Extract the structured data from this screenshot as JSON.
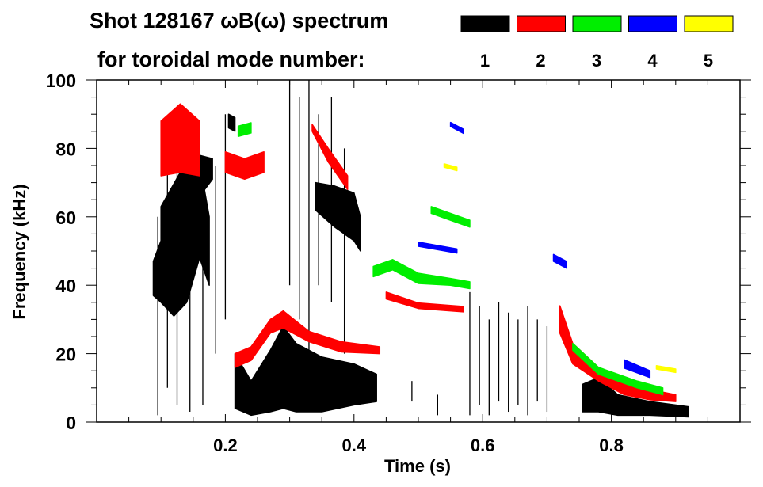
{
  "chart_data": {
    "type": "heatmap",
    "title": "Shot 128167 ωB(ω) spectrum",
    "subtitle": "for toroidal mode number:",
    "xlabel": "Time (s)",
    "ylabel": "Frequency (kHz)",
    "xlim": [
      0,
      1.0
    ],
    "ylim": [
      0,
      100
    ],
    "xticks": [
      0.2,
      0.4,
      0.6,
      0.8
    ],
    "xtick_labels": [
      "0.2",
      "0.4",
      "0.6",
      "0.8"
    ],
    "yticks": [
      0,
      20,
      40,
      60,
      80,
      100
    ],
    "ytick_labels": [
      "0",
      "20",
      "40",
      "60",
      "80",
      "100"
    ],
    "legend": [
      {
        "label": "1",
        "color": "#000000"
      },
      {
        "label": "2",
        "color": "#ff0000"
      },
      {
        "label": "3",
        "color": "#00ee00"
      },
      {
        "label": "4",
        "color": "#0000ff"
      },
      {
        "label": "5",
        "color": "#ffff00"
      }
    ],
    "ridges": [
      {
        "mode": 1,
        "points": [
          [
            0.088,
            42,
            5
          ],
          [
            0.1,
            44,
            9
          ],
          [
            0.12,
            45,
            14
          ],
          [
            0.14,
            55,
            20
          ],
          [
            0.16,
            62,
            14
          ],
          [
            0.175,
            50,
            10
          ]
        ]
      },
      {
        "mode": 1,
        "points": [
          [
            0.1,
            58,
            5
          ],
          [
            0.13,
            65,
            8
          ],
          [
            0.16,
            72,
            6
          ],
          [
            0.18,
            74,
            3
          ]
        ]
      },
      {
        "mode": 1,
        "points": [
          [
            0.205,
            88,
            2
          ],
          [
            0.215,
            87,
            2
          ]
        ]
      },
      {
        "mode": 1,
        "points": [
          [
            0.215,
            12,
            8
          ],
          [
            0.24,
            7,
            5
          ],
          [
            0.27,
            12,
            9
          ],
          [
            0.29,
            16,
            12
          ],
          [
            0.31,
            13,
            10
          ],
          [
            0.35,
            11,
            8
          ],
          [
            0.4,
            11,
            6
          ],
          [
            0.435,
            10,
            4
          ]
        ]
      },
      {
        "mode": 1,
        "points": [
          [
            0.34,
            66,
            4
          ],
          [
            0.37,
            63,
            6
          ],
          [
            0.4,
            60,
            7
          ],
          [
            0.41,
            55,
            5
          ]
        ]
      },
      {
        "mode": 1,
        "points": [
          [
            0.755,
            7,
            4
          ],
          [
            0.78,
            8,
            5
          ],
          [
            0.81,
            5,
            3
          ],
          [
            0.86,
            4,
            2
          ],
          [
            0.92,
            3,
            1.5
          ]
        ]
      },
      {
        "mode": 2,
        "points": [
          [
            0.1,
            80,
            8
          ],
          [
            0.13,
            83,
            10
          ],
          [
            0.16,
            80,
            8
          ]
        ]
      },
      {
        "mode": 2,
        "points": [
          [
            0.2,
            76,
            3
          ],
          [
            0.23,
            74,
            3
          ],
          [
            0.26,
            76,
            3
          ]
        ]
      },
      {
        "mode": 2,
        "points": [
          [
            0.335,
            86,
            1
          ],
          [
            0.36,
            78,
            2
          ],
          [
            0.39,
            70,
            2
          ]
        ]
      },
      {
        "mode": 2,
        "points": [
          [
            0.215,
            18,
            2
          ],
          [
            0.24,
            20,
            2
          ],
          [
            0.27,
            28,
            2
          ],
          [
            0.29,
            30,
            2.5
          ],
          [
            0.33,
            25,
            1.5
          ],
          [
            0.38,
            22,
            1.5
          ],
          [
            0.44,
            21,
            1
          ]
        ]
      },
      {
        "mode": 2,
        "points": [
          [
            0.45,
            37,
            1
          ],
          [
            0.5,
            34,
            0.8
          ],
          [
            0.57,
            33,
            0.8
          ]
        ]
      },
      {
        "mode": 2,
        "points": [
          [
            0.72,
            30,
            4
          ],
          [
            0.74,
            20,
            3
          ],
          [
            0.78,
            14,
            2
          ],
          [
            0.82,
            10,
            2
          ],
          [
            0.86,
            8,
            1.5
          ],
          [
            0.9,
            7,
            1
          ]
        ]
      },
      {
        "mode": 3,
        "points": [
          [
            0.22,
            85,
            1.5
          ],
          [
            0.24,
            86,
            1.5
          ]
        ]
      },
      {
        "mode": 3,
        "points": [
          [
            0.43,
            44,
            1.5
          ],
          [
            0.46,
            46,
            1.5
          ],
          [
            0.5,
            42,
            1.5
          ],
          [
            0.55,
            41,
            1
          ],
          [
            0.58,
            40,
            1
          ]
        ]
      },
      {
        "mode": 3,
        "points": [
          [
            0.52,
            62,
            1
          ],
          [
            0.55,
            60,
            1
          ],
          [
            0.58,
            58,
            1
          ]
        ]
      },
      {
        "mode": 3,
        "points": [
          [
            0.74,
            22,
            1
          ],
          [
            0.78,
            15,
            1
          ],
          [
            0.84,
            11,
            1
          ],
          [
            0.88,
            9,
            1
          ]
        ]
      },
      {
        "mode": 4,
        "points": [
          [
            0.55,
            87,
            0.6
          ],
          [
            0.57,
            85,
            0.6
          ]
        ]
      },
      {
        "mode": 4,
        "points": [
          [
            0.5,
            52,
            0.6
          ],
          [
            0.56,
            50,
            0.6
          ]
        ]
      },
      {
        "mode": 4,
        "points": [
          [
            0.71,
            48,
            1
          ],
          [
            0.73,
            46,
            1
          ]
        ]
      },
      {
        "mode": 4,
        "points": [
          [
            0.82,
            17,
            1.2
          ],
          [
            0.86,
            14,
            1
          ]
        ]
      },
      {
        "mode": 5,
        "points": [
          [
            0.54,
            75,
            0.5
          ],
          [
            0.56,
            74,
            0.5
          ]
        ]
      },
      {
        "mode": 5,
        "points": [
          [
            0.87,
            16,
            0.5
          ],
          [
            0.9,
            15,
            0.5
          ]
        ]
      }
    ],
    "streaks": [
      [
        0.095,
        2,
        60
      ],
      [
        0.11,
        10,
        80
      ],
      [
        0.125,
        5,
        90
      ],
      [
        0.145,
        3,
        85
      ],
      [
        0.165,
        5,
        70
      ],
      [
        0.185,
        20,
        75
      ],
      [
        0.2,
        30,
        90
      ],
      [
        0.3,
        40,
        100
      ],
      [
        0.315,
        30,
        95
      ],
      [
        0.33,
        20,
        100
      ],
      [
        0.345,
        40,
        90
      ],
      [
        0.365,
        35,
        95
      ],
      [
        0.385,
        20,
        80
      ],
      [
        0.58,
        2,
        38
      ],
      [
        0.595,
        5,
        34
      ],
      [
        0.61,
        2,
        30
      ],
      [
        0.625,
        6,
        35
      ],
      [
        0.64,
        3,
        32
      ],
      [
        0.655,
        5,
        30
      ],
      [
        0.67,
        2,
        34
      ],
      [
        0.685,
        6,
        30
      ],
      [
        0.7,
        3,
        28
      ],
      [
        0.53,
        2,
        8
      ],
      [
        0.49,
        6,
        12
      ]
    ]
  }
}
